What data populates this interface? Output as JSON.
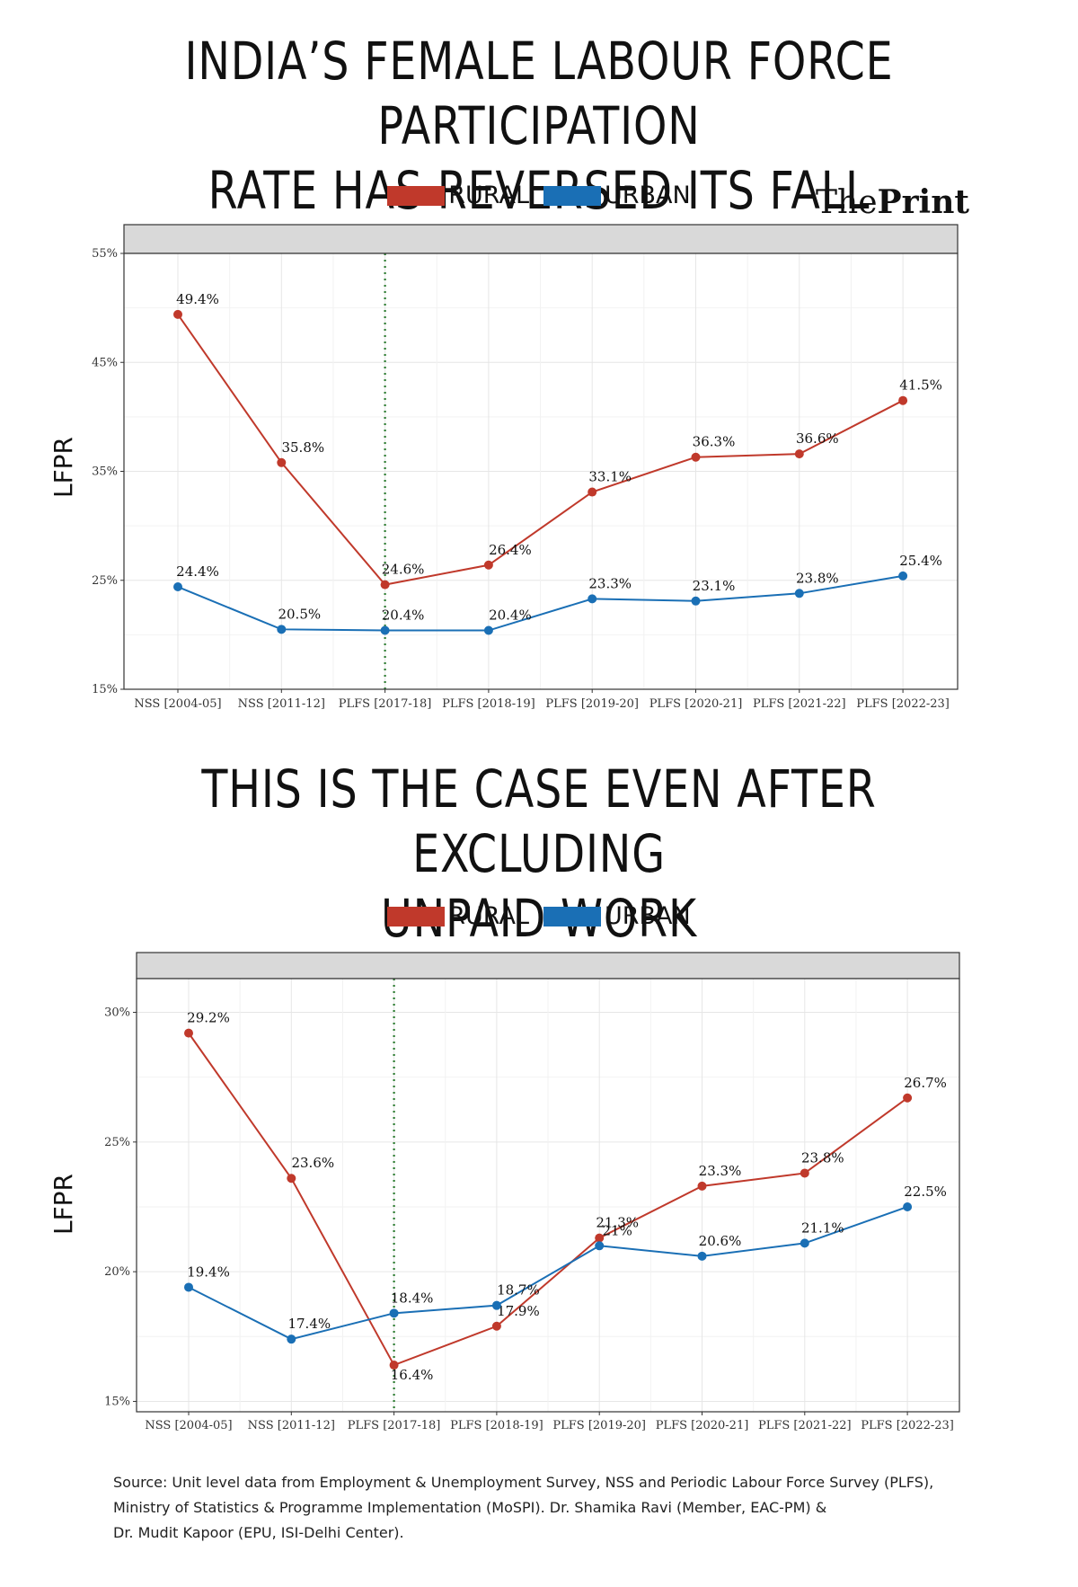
{
  "headlines": [
    "INDIA’S FEMALE LABOUR FORCE PARTICIPATION RATE HAS REVERSED ITS FALL",
    "THIS IS THE CASE EVEN AFTER EXCLUDING UNPAID WORK"
  ],
  "headline_lines": [
    [
      "INDIA’S FEMALE LABOUR FORCE PARTICIPATION",
      "RATE HAS REVERSED ITS FALL"
    ],
    [
      "THIS IS THE CASE EVEN AFTER EXCLUDING",
      "UNPAID WORK"
    ]
  ],
  "brand": {
    "the": "The",
    "print": "Print"
  },
  "legend": {
    "rural": "RURAL",
    "urban": "URBAN"
  },
  "colors": {
    "rural": "#c0392b",
    "urban": "#1a6fb5",
    "vline": "#2e7d32",
    "strip": "#d9d9d9"
  },
  "source": {
    "lines": [
      "Source: Unit level data from Employment & Unemployment Survey, NSS and Periodic Labour Force Survey (PLFS),",
      "Ministry of Statistics & Programme Implementation (MoSPI). Dr. Shamika Ravi (Member, EAC-PM) &",
      "Dr. Mudit Kapoor (EPU, ISI-Delhi Center)."
    ]
  },
  "chart_data": [
    {
      "type": "line",
      "title": "INDIA’S FEMALE LABOUR FORCE PARTICIPATION RATE HAS REVERSED ITS FALL",
      "ylabel": "LFPR",
      "xlabel": "",
      "categories": [
        "NSS [2004-05]",
        "NSS [2011-12]",
        "PLFS [2017-18]",
        "PLFS [2018-19]",
        "PLFS [2019-20]",
        "PLFS [2020-21]",
        "PLFS [2021-22]",
        "PLFS [2022-23]"
      ],
      "ylim": [
        15,
        55
      ],
      "yticks": [
        15,
        25,
        35,
        45,
        55
      ],
      "ytick_labels": [
        "15%",
        "25%",
        "35%",
        "45%",
        "55%"
      ],
      "vline_at": "PLFS [2017-18]",
      "grid": true,
      "legend_position": "top",
      "series": [
        {
          "name": "RURAL",
          "values": [
            49.4,
            35.8,
            24.6,
            26.4,
            33.1,
            36.3,
            36.6,
            41.5
          ],
          "labels": [
            "49.4%",
            "35.8%",
            "24.6%",
            "26.4%",
            "33.1%",
            "36.3%",
            "36.6%",
            "41.5%"
          ]
        },
        {
          "name": "URBAN",
          "values": [
            24.4,
            20.5,
            20.4,
            20.4,
            23.3,
            23.1,
            23.8,
            25.4
          ],
          "labels": [
            "24.4%",
            "20.5%",
            "20.4%",
            "20.4%",
            "23.3%",
            "23.1%",
            "23.8%",
            "25.4%"
          ]
        }
      ]
    },
    {
      "type": "line",
      "title": "THIS IS THE CASE EVEN AFTER EXCLUDING UNPAID WORK",
      "ylabel": "LFPR",
      "xlabel": "",
      "categories": [
        "NSS [2004-05]",
        "NSS [2011-12]",
        "PLFS [2017-18]",
        "PLFS [2018-19]",
        "PLFS [2019-20]",
        "PLFS [2020-21]",
        "PLFS [2021-22]",
        "PLFS [2022-23]"
      ],
      "ylim": [
        14.6,
        31.3
      ],
      "yticks": [
        15,
        20,
        25,
        30
      ],
      "ytick_labels": [
        "15%",
        "20%",
        "25%",
        "30%"
      ],
      "vline_at": "PLFS [2017-18]",
      "grid": true,
      "legend_position": "top",
      "series": [
        {
          "name": "RURAL",
          "values": [
            29.2,
            23.6,
            16.4,
            17.9,
            21.3,
            23.3,
            23.8,
            26.7
          ],
          "labels": [
            "29.2%",
            "23.6%",
            "16.4%",
            "17.9%",
            "21.3%",
            "23.3%",
            "23.8%",
            "26.7%"
          ]
        },
        {
          "name": "URBAN",
          "values": [
            19.4,
            17.4,
            18.4,
            18.7,
            21.0,
            20.6,
            21.1,
            22.5
          ],
          "labels": [
            "19.4%",
            "17.4%",
            "18.4%",
            "18.7%",
            "21%",
            "20.6%",
            "21.1%",
            "22.5%"
          ]
        }
      ]
    }
  ]
}
